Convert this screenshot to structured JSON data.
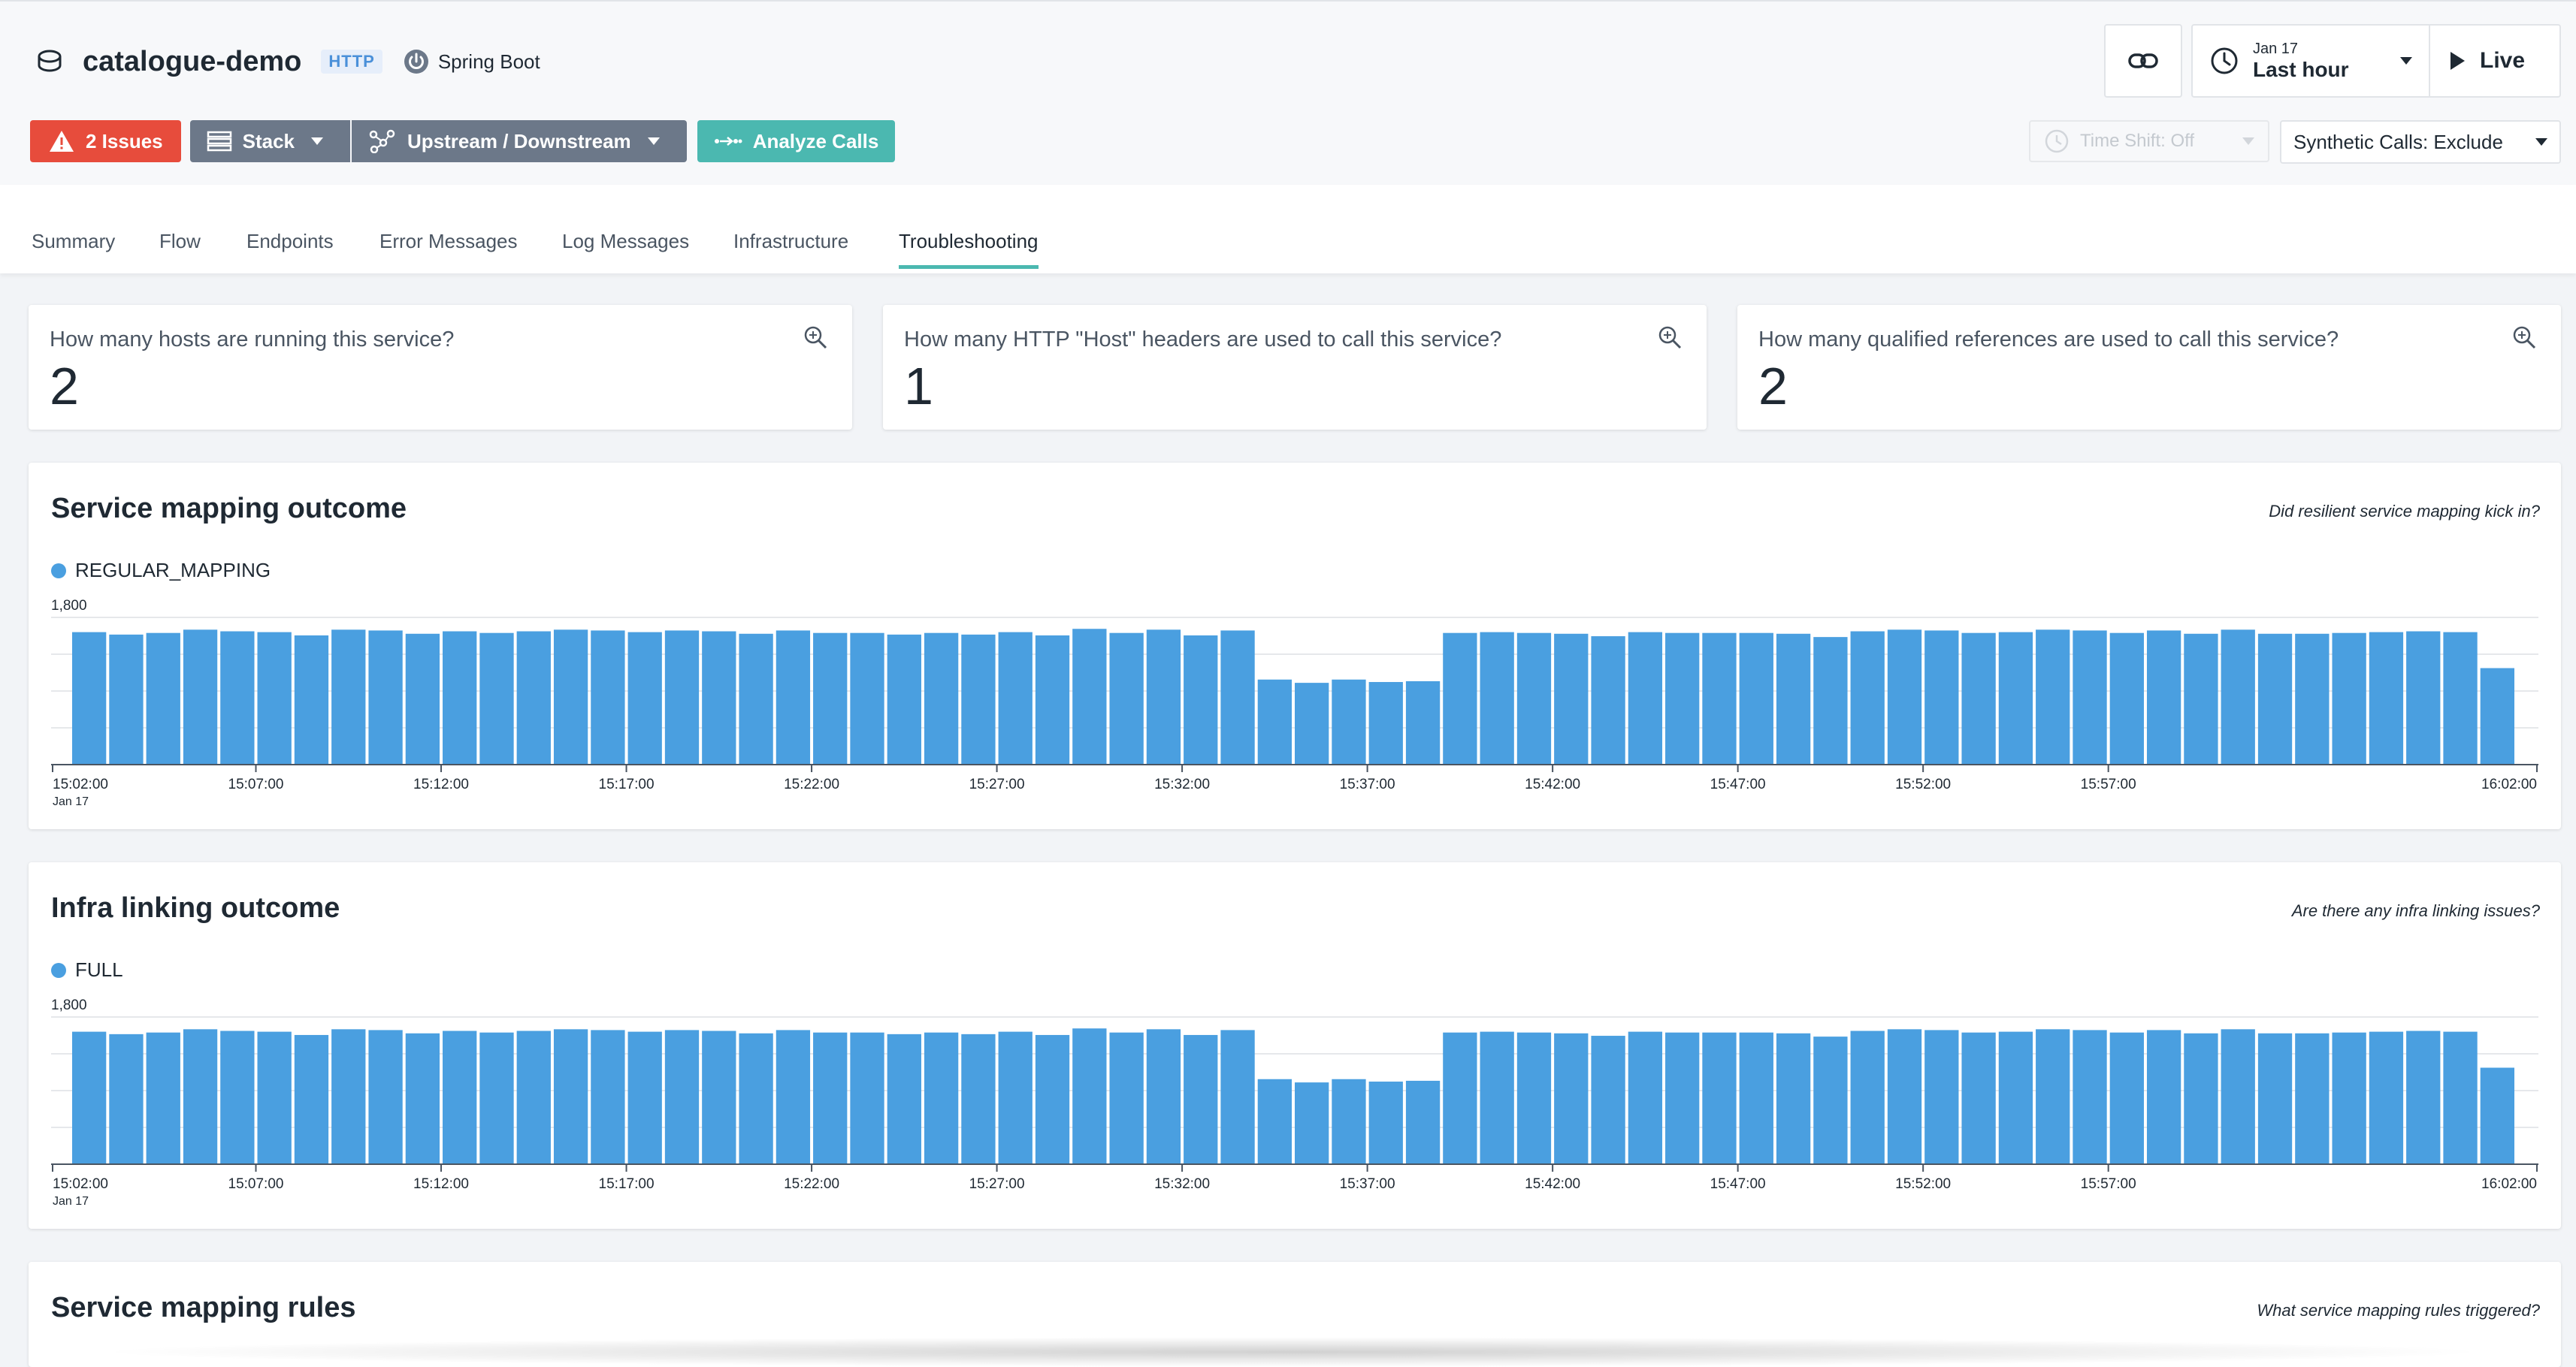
{
  "service": {
    "name": "catalogue-demo",
    "type_badge": "HTTP",
    "framework": "Spring Boot"
  },
  "actions": {
    "issues_label": "2 Issues",
    "stack_label": "Stack",
    "updown_label": "Upstream / Downstream",
    "analyze_label": "Analyze Calls"
  },
  "time": {
    "date": "Jan 17",
    "range": "Last hour",
    "live_label": "Live",
    "timeshift_label": "Time Shift: Off",
    "synthetic_label": "Synthetic Calls: Exclude"
  },
  "tabs": [
    {
      "label": "Summary"
    },
    {
      "label": "Flow"
    },
    {
      "label": "Endpoints"
    },
    {
      "label": "Error Messages"
    },
    {
      "label": "Log Messages"
    },
    {
      "label": "Infrastructure"
    },
    {
      "label": "Troubleshooting"
    }
  ],
  "active_tab": "Troubleshooting",
  "stats": [
    {
      "question": "How many hosts are running this service?",
      "value": "2"
    },
    {
      "question": "How many HTTP \"Host\" headers are used to call this service?",
      "value": "1"
    },
    {
      "question": "How many qualified references are used to call this service?",
      "value": "2"
    }
  ],
  "colors": {
    "bar": "#4a9fe0",
    "issues": "#e74c3c",
    "analyze": "#4bb8b0",
    "tab_active": "#4bb8b0"
  },
  "panels": [
    {
      "title": "Service mapping outcome",
      "hint": "Did resilient service mapping kick in?"
    },
    {
      "title": "Infra linking outcome",
      "hint": "Are there any infra linking issues?"
    },
    {
      "title": "Service mapping rules",
      "hint": "What service mapping rules triggered?"
    }
  ],
  "chart_data": [
    {
      "type": "bar",
      "title": "Service mapping outcome",
      "series": [
        {
          "name": "REGULAR_MAPPING",
          "values": [
            1620,
            1590,
            1610,
            1650,
            1630,
            1620,
            1580,
            1650,
            1640,
            1600,
            1630,
            1610,
            1630,
            1650,
            1640,
            1620,
            1640,
            1630,
            1600,
            1640,
            1610,
            1610,
            1590,
            1610,
            1590,
            1620,
            1580,
            1660,
            1610,
            1650,
            1580,
            1640,
            1040,
            1000,
            1040,
            1010,
            1020,
            1610,
            1620,
            1610,
            1600,
            1570,
            1620,
            1610,
            1610,
            1610,
            1600,
            1560,
            1630,
            1650,
            1640,
            1610,
            1620,
            1650,
            1640,
            1610,
            1640,
            1600,
            1650,
            1600,
            1600,
            1610,
            1620,
            1630,
            1620,
            1180
          ]
        }
      ],
      "x_tick_labels": [
        "15:02:00",
        "15:07:00",
        "15:12:00",
        "15:17:00",
        "15:22:00",
        "15:27:00",
        "15:32:00",
        "15:37:00",
        "15:42:00",
        "15:47:00",
        "15:52:00",
        "15:57:00",
        "16:02:00"
      ],
      "x_sub_label": "Jan 17",
      "y_tick_label": "1,800",
      "ylim": [
        0,
        1800
      ]
    },
    {
      "type": "bar",
      "title": "Infra linking outcome",
      "series": [
        {
          "name": "FULL",
          "values": [
            1620,
            1590,
            1610,
            1650,
            1630,
            1620,
            1580,
            1650,
            1640,
            1600,
            1630,
            1610,
            1630,
            1650,
            1640,
            1620,
            1640,
            1630,
            1600,
            1640,
            1610,
            1610,
            1590,
            1610,
            1590,
            1620,
            1580,
            1660,
            1610,
            1650,
            1580,
            1640,
            1040,
            1000,
            1040,
            1010,
            1020,
            1610,
            1620,
            1610,
            1600,
            1570,
            1620,
            1610,
            1610,
            1610,
            1600,
            1560,
            1630,
            1650,
            1640,
            1610,
            1620,
            1650,
            1640,
            1610,
            1640,
            1600,
            1650,
            1600,
            1600,
            1610,
            1620,
            1630,
            1620,
            1180
          ]
        }
      ],
      "x_tick_labels": [
        "15:02:00",
        "15:07:00",
        "15:12:00",
        "15:17:00",
        "15:22:00",
        "15:27:00",
        "15:32:00",
        "15:37:00",
        "15:42:00",
        "15:47:00",
        "15:52:00",
        "15:57:00",
        "16:02:00"
      ],
      "x_sub_label": "Jan 17",
      "y_tick_label": "1,800",
      "ylim": [
        0,
        1800
      ]
    }
  ]
}
